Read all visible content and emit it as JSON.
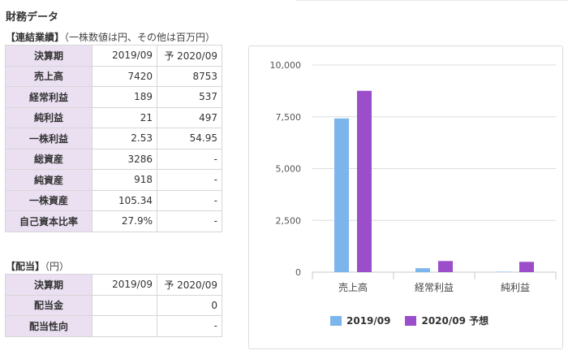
{
  "page_title": "財務データ",
  "consolidated": {
    "title": "【連結業績】",
    "note": "（一株数値は円、その他は百万円）",
    "header": {
      "label": "決算期",
      "col1": "2019/09",
      "col2": "予 2020/09"
    },
    "rows": [
      {
        "label": "売上高",
        "v1": "7420",
        "v2": "8753"
      },
      {
        "label": "経常利益",
        "v1": "189",
        "v2": "537"
      },
      {
        "label": "純利益",
        "v1": "21",
        "v2": "497"
      },
      {
        "label": "一株利益",
        "v1": "2.53",
        "v2": "54.95"
      },
      {
        "label": "総資産",
        "v1": "3286",
        "v2": "-"
      },
      {
        "label": "純資産",
        "v1": "918",
        "v2": "-"
      },
      {
        "label": "一株資産",
        "v1": "105.34",
        "v2": "-"
      },
      {
        "label": "自己資本比率",
        "v1": "27.9%",
        "v2": "-"
      }
    ]
  },
  "dividend": {
    "title": "【配当】",
    "note": "（円）",
    "header": {
      "label": "決算期",
      "col1": "2019/09",
      "col2": "予 2020/09"
    },
    "rows": [
      {
        "label": "配当金",
        "v1": "",
        "v2": "0"
      },
      {
        "label": "配当性向",
        "v1": "",
        "v2": "-"
      }
    ]
  },
  "chart_data": {
    "type": "bar",
    "categories": [
      "売上高",
      "経常利益",
      "純利益"
    ],
    "series": [
      {
        "name": "2019/09",
        "values": [
          7420,
          189,
          21
        ],
        "color": "#7cb5ec"
      },
      {
        "name": "2020/09 予想",
        "values": [
          8753,
          537,
          497
        ],
        "color": "#9b4dca"
      }
    ],
    "y_ticks": [
      "0",
      "2,500",
      "5,000",
      "7,500",
      "10,000"
    ],
    "ylim": [
      0,
      10000
    ],
    "grid": true,
    "legend_position": "bottom"
  }
}
